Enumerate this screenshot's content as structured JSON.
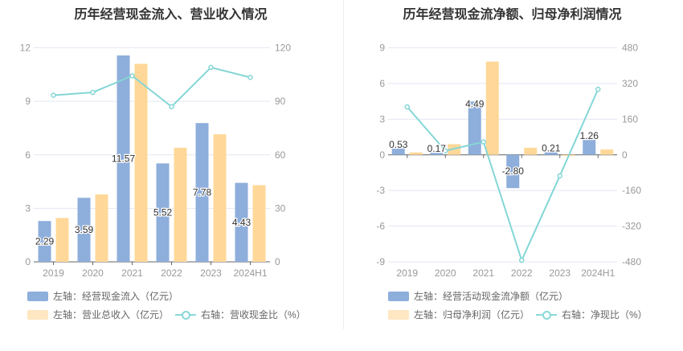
{
  "colors": {
    "bar1": "#8eaedb",
    "bar2": "#ffd899",
    "line": "#84d6d6",
    "grid": "#e3e7f3",
    "axis_text": "#999"
  },
  "chart_data": [
    {
      "type": "bar",
      "title": "历年经营现金流入、营业收入情况",
      "categories": [
        "2019",
        "2020",
        "2021",
        "2022",
        "2023",
        "2024H1"
      ],
      "left_axis": {
        "ticks": [
          "0",
          "3",
          "6",
          "9",
          "12"
        ],
        "range": [
          0,
          12
        ]
      },
      "right_axis": {
        "ticks": [
          "0",
          "30",
          "60",
          "90",
          "120"
        ],
        "range": [
          0,
          120
        ]
      },
      "series": [
        {
          "name": "左轴：经营现金流入（亿元）",
          "axis": "left",
          "kind": "bar",
          "values": [
            2.29,
            3.59,
            11.57,
            5.52,
            7.78,
            4.43
          ],
          "labels": [
            "2.29",
            "3.59",
            "11.57",
            "5.52",
            "7.78",
            "4.43"
          ]
        },
        {
          "name": "左轴：营业总收入（亿元）",
          "axis": "left",
          "kind": "bar",
          "values": [
            2.46,
            3.78,
            11.1,
            6.4,
            7.15,
            4.3
          ]
        },
        {
          "name": "右轴：营收现金比（%）",
          "axis": "right",
          "kind": "line",
          "values": [
            93.4,
            95,
            104.3,
            87,
            109,
            103.4
          ]
        }
      ]
    },
    {
      "type": "bar",
      "title": "历年经营现金流净额、归母净利润情况",
      "categories": [
        "2019",
        "2020",
        "2021",
        "2022",
        "2023",
        "2024H1"
      ],
      "left_axis": {
        "ticks": [
          "-9",
          "-6",
          "-3",
          "0",
          "3",
          "6",
          "9"
        ],
        "range": [
          -9,
          9
        ]
      },
      "right_axis": {
        "ticks": [
          "-480",
          "-320",
          "-160",
          "0",
          "160",
          "320",
          "480"
        ],
        "range": [
          -480,
          480
        ]
      },
      "series": [
        {
          "name": "左轴：经营活动现金流净额（亿元）",
          "axis": "left",
          "kind": "bar",
          "values": [
            0.53,
            0.17,
            4.49,
            -2.8,
            0.21,
            1.26
          ],
          "labels": [
            "0.53",
            "0.17",
            "4.49",
            "-2.80",
            "0.21",
            "1.26"
          ]
        },
        {
          "name": "左轴：归母净利润（亿元）",
          "axis": "left",
          "kind": "bar",
          "values": [
            0.2,
            0.9,
            7.84,
            0.6,
            -0.1,
            0.45
          ]
        },
        {
          "name": "右轴：净现比（%）",
          "axis": "right",
          "kind": "line",
          "values": [
            215,
            18,
            58,
            -473,
            -94,
            294
          ]
        }
      ]
    }
  ]
}
